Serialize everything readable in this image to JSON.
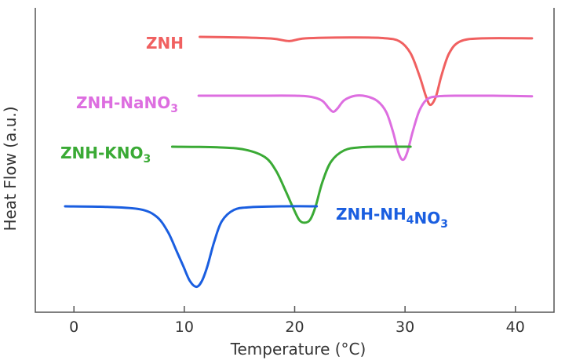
{
  "chart_data": {
    "type": "line",
    "title": "",
    "xlabel": "Temperature (°C)",
    "ylabel": "Heat Flow (a.u.)",
    "xlim": [
      -3.5,
      43.5
    ],
    "ylim": [
      -6.6,
      1.0
    ],
    "x_ticks": [
      0,
      10,
      20,
      30,
      40
    ],
    "grid": false,
    "legend": "labels next to curves",
    "series": [
      {
        "name": "ZNH",
        "label_parts": [
          {
            "t": "ZNH",
            "sub": false
          }
        ],
        "color": "#f06060",
        "x": [
          11.4,
          15,
          18,
          19.5,
          21,
          25,
          28,
          29.5,
          30.5,
          31.3,
          31.9,
          32.3,
          32.8,
          33.3,
          34,
          35,
          37,
          41.5
        ],
        "y": [
          0,
          -0.02,
          -0.06,
          -0.14,
          -0.05,
          -0.02,
          -0.04,
          -0.15,
          -0.55,
          -1.3,
          -2.0,
          -2.28,
          -2.0,
          -1.3,
          -0.55,
          -0.15,
          -0.05,
          -0.05
        ]
      },
      {
        "name": "ZNH-NaNO3",
        "label_parts": [
          {
            "t": "ZNH-NaNO",
            "sub": false
          },
          {
            "t": "3",
            "sub": true
          }
        ],
        "color": "#dd6ee0",
        "x": [
          11.3,
          16,
          20,
          21.5,
          22.5,
          23.1,
          23.5,
          23.9,
          24.5,
          25.5,
          26.5,
          27.5,
          28.3,
          28.9,
          29.4,
          29.8,
          30.2,
          30.7,
          31.3,
          32,
          33,
          35,
          38,
          41.5
        ],
        "y": [
          0,
          0,
          0,
          -0.04,
          -0.17,
          -0.42,
          -0.54,
          -0.42,
          -0.15,
          0,
          -0.02,
          -0.18,
          -0.55,
          -1.2,
          -1.9,
          -2.15,
          -1.9,
          -1.2,
          -0.5,
          -0.12,
          -0.02,
          0,
          0,
          -0.02
        ]
      },
      {
        "name": "ZNH-KNO3",
        "label_parts": [
          {
            "t": "ZNH-KNO",
            "sub": false
          },
          {
            "t": "3",
            "sub": true
          }
        ],
        "color": "#3aaa35",
        "x": [
          8.9,
          13,
          15.5,
          17.3,
          18.3,
          19.2,
          19.8,
          20.4,
          20.9,
          21.4,
          21.9,
          22.5,
          23.3,
          24.5,
          26,
          28,
          30.5
        ],
        "y": [
          0,
          -0.02,
          -0.1,
          -0.35,
          -0.8,
          -1.5,
          -2.0,
          -2.45,
          -2.55,
          -2.45,
          -2.0,
          -1.2,
          -0.5,
          -0.12,
          -0.02,
          0,
          0
        ]
      },
      {
        "name": "ZNH-NH4NO3",
        "label_parts": [
          {
            "t": "ZNH-NH",
            "sub": false
          },
          {
            "t": "4",
            "sub": true
          },
          {
            "t": "NO",
            "sub": false
          },
          {
            "t": "3",
            "sub": true
          }
        ],
        "color": "#1a5ee0",
        "x": [
          -0.8,
          3,
          6,
          7.5,
          8.5,
          9.3,
          9.9,
          10.5,
          11.1,
          11.6,
          12.1,
          12.7,
          13.4,
          14.5,
          16,
          19,
          22
        ],
        "y": [
          0,
          -0.02,
          -0.1,
          -0.35,
          -0.85,
          -1.5,
          -2.0,
          -2.5,
          -2.7,
          -2.5,
          -2.0,
          -1.2,
          -0.5,
          -0.12,
          -0.03,
          0,
          0
        ]
      }
    ]
  }
}
